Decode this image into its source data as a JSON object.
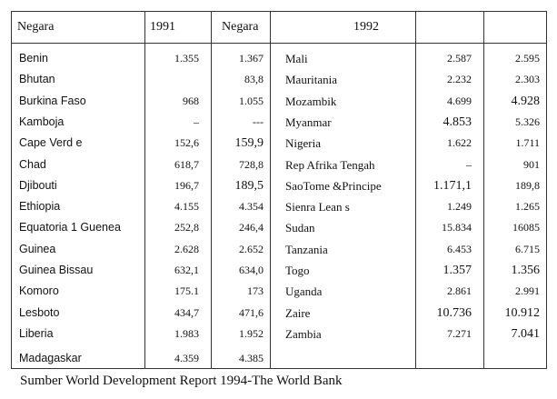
{
  "header": {
    "col1": "Negara",
    "col2": "1991",
    "col3": "Negara",
    "col4": "1992"
  },
  "rows": [
    {
      "left_country": "Benin",
      "left_v1": "1.355",
      "left_v2": "1.367",
      "right_country": "Mali",
      "right_v1": "2.587",
      "right_v2": "2.595"
    },
    {
      "left_country": "Bhutan",
      "left_v1": "",
      "left_v2": "83,8",
      "right_country": "Mauritania",
      "right_v1": "2.232",
      "right_v2": "2.303"
    },
    {
      "left_country": "Burkina  Faso",
      "left_v1": "968",
      "left_v2": "1.055",
      "right_country": "Mozambik",
      "right_v1": "4.699",
      "right_v2": "4.928"
    },
    {
      "left_country": "Kamboja",
      "left_v1": "–",
      "left_v2": "---",
      "right_country": "Myanmar",
      "right_v1": "4.853",
      "right_v2": "5.326"
    },
    {
      "left_country": "Cape Verd e",
      "left_v1": "152,6",
      "left_v2": "159,9",
      "right_country": "Nigeria",
      "right_v1": "1.622",
      "right_v2": "1.711"
    },
    {
      "left_country": "Chad",
      "left_v1": "618,7",
      "left_v2": "728,8",
      "right_country": "Rep Afrika Tengah",
      "right_v1": "–",
      "right_v2": "901"
    },
    {
      "left_country": "Djibouti",
      "left_v1": "196,7",
      "left_v2": "189,5",
      "right_country": "SaoTome  &Principe",
      "right_v1": "1.171,1",
      "right_v2": "189,8"
    },
    {
      "left_country": "Ethiopia",
      "left_v1": "4.155",
      "left_v2": "4.354",
      "right_country": "Sienra  Lean s",
      "right_v1": "1.249",
      "right_v2": "1.265"
    },
    {
      "left_country": "Equatoria 1  Guenea",
      "left_v1": "252,8",
      "left_v2": "246,4",
      "right_country": "Sudan",
      "right_v1": "15.834",
      "right_v2": "16085"
    },
    {
      "left_country": "Guinea",
      "left_v1": "2.628",
      "left_v2": "2.652",
      "right_country": "Tanzania",
      "right_v1": "6.453",
      "right_v2": "6.715"
    },
    {
      "left_country": "Guinea  Bissau",
      "left_v1": "632,1",
      "left_v2": "634,0",
      "right_country": "Togo",
      "right_v1": "1.357",
      "right_v2": "1.356"
    },
    {
      "left_country": "Komoro",
      "left_v1": "175.1",
      "left_v2": "173",
      "right_country": "Uganda",
      "right_v1": "2.861",
      "right_v2": "2.991"
    },
    {
      "left_country": "Lesboto",
      "left_v1": "434,7",
      "left_v2": "471,6",
      "right_country": "Zaire",
      "right_v1": "10.736",
      "right_v2": "10.912"
    },
    {
      "left_country": "Liberia",
      "left_v1": "1.983",
      "left_v2": "1.952",
      "right_country": "Zambia",
      "right_v1": "7.271",
      "right_v2": "7.041"
    },
    {
      "left_country": "Madagaskar",
      "left_v1": "4.359",
      "left_v2": "4.385",
      "right_country": "",
      "right_v1": "",
      "right_v2": ""
    }
  ],
  "source": "Sumber World Development Report 1994-The World Bank"
}
